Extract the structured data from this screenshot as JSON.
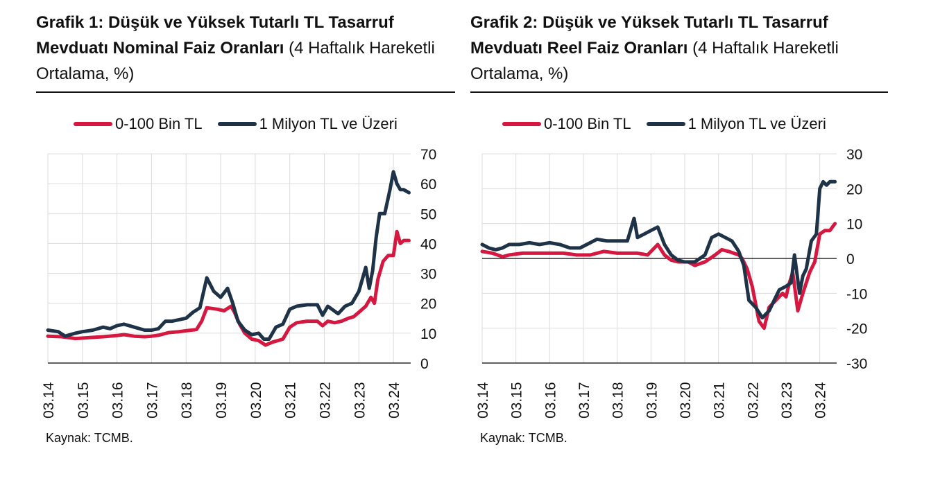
{
  "colors": {
    "series_red": "#d6173f",
    "series_navy": "#1e3347",
    "grid": "#dcdcdc",
    "axis": "#000000"
  },
  "source_text": "Kaynak: TCMB.",
  "chart_data": [
    {
      "type": "line",
      "title_bold": "Grafik 1: Düşük ve Yüksek Tutarlı TL Tasarruf Mevduatı Nominal Faiz Oranları",
      "title_rest": " (4 Haftalık Hareketli Ortalama, %)",
      "xlabel": "",
      "ylabel": "",
      "ylim": [
        0,
        70
      ],
      "yticks": [
        0,
        10,
        20,
        30,
        40,
        50,
        60,
        70
      ],
      "y_axis_side": "right",
      "grid": true,
      "legend": "top",
      "x_ticks": [
        "03.14",
        "03.15",
        "03.16",
        "03.17",
        "03.18",
        "03.19",
        "03.20",
        "03.21",
        "03.22",
        "03.23",
        "03.24"
      ],
      "x_range": [
        2014.0,
        2024.5
      ],
      "series": [
        {
          "name": "0-100 Bin TL",
          "color": "#d6173f",
          "x": [
            2014.0,
            2014.4,
            2014.8,
            2015.2,
            2015.6,
            2016.0,
            2016.2,
            2016.5,
            2016.8,
            2017.0,
            2017.2,
            2017.5,
            2017.8,
            2018.0,
            2018.3,
            2018.45,
            2018.6,
            2018.9,
            2019.1,
            2019.3,
            2019.4,
            2019.55,
            2019.7,
            2019.9,
            2020.1,
            2020.3,
            2020.5,
            2020.8,
            2021.0,
            2021.2,
            2021.5,
            2021.8,
            2021.95,
            2022.1,
            2022.3,
            2022.5,
            2022.7,
            2022.85,
            2023.0,
            2023.2,
            2023.35,
            2023.45,
            2023.55,
            2023.7,
            2023.85,
            2024.0,
            2024.1,
            2024.2,
            2024.3,
            2024.45
          ],
          "y": [
            9,
            8.8,
            8.2,
            8.5,
            8.8,
            9.2,
            9.5,
            9.0,
            8.8,
            9.0,
            9.3,
            10.2,
            10.5,
            10.8,
            11.2,
            14,
            18.5,
            18,
            17.5,
            19,
            17,
            13,
            10,
            8,
            7.5,
            6,
            7,
            8,
            12,
            13.5,
            14,
            14,
            12.5,
            14,
            13.5,
            14,
            15,
            15.5,
            17,
            19,
            22,
            20,
            28,
            34,
            36,
            36,
            44,
            40,
            41,
            41
          ]
        },
        {
          "name": "1 Milyon TL ve Üzeri",
          "color": "#1e3347",
          "x": [
            2014.0,
            2014.3,
            2014.5,
            2014.8,
            2015.0,
            2015.3,
            2015.6,
            2015.8,
            2016.0,
            2016.2,
            2016.5,
            2016.8,
            2017.0,
            2017.2,
            2017.4,
            2017.6,
            2017.8,
            2018.0,
            2018.2,
            2018.4,
            2018.6,
            2018.8,
            2019.0,
            2019.2,
            2019.35,
            2019.5,
            2019.7,
            2019.9,
            2020.1,
            2020.25,
            2020.4,
            2020.6,
            2020.8,
            2021.0,
            2021.2,
            2021.5,
            2021.8,
            2021.95,
            2022.1,
            2022.4,
            2022.6,
            2022.8,
            2023.0,
            2023.2,
            2023.3,
            2023.4,
            2023.5,
            2023.6,
            2023.75,
            2023.9,
            2024.0,
            2024.1,
            2024.2,
            2024.3,
            2024.45
          ],
          "y": [
            11,
            10.5,
            9,
            10,
            10.5,
            11,
            12,
            11.5,
            12.5,
            13,
            12,
            11,
            11,
            11.5,
            14,
            14,
            14.5,
            15,
            17,
            18.5,
            28.5,
            24,
            22,
            25,
            20,
            14,
            11,
            9.5,
            10,
            8,
            8,
            12,
            13,
            18,
            19,
            19.5,
            19.5,
            16,
            19,
            16.5,
            19,
            20,
            24,
            32,
            25,
            31,
            42,
            50,
            50,
            58,
            64,
            60,
            58,
            58,
            57
          ]
        }
      ]
    },
    {
      "type": "line",
      "title_bold": "Grafik 2: Düşük ve Yüksek Tutarlı TL Tasarruf Mevduatı Reel Faiz Oranları",
      "title_rest": " (4 Haftalık Hareketli Ortalama, %)",
      "xlabel": "",
      "ylabel": "",
      "ylim": [
        -30,
        30
      ],
      "yticks": [
        -30,
        -20,
        -10,
        0,
        10,
        20,
        30
      ],
      "y_axis_side": "right",
      "zero_line": true,
      "grid": true,
      "legend": "top",
      "x_ticks": [
        "03.14",
        "03.15",
        "03.16",
        "03.17",
        "03.18",
        "03.19",
        "03.20",
        "03.21",
        "03.22",
        "03.23",
        "03.24"
      ],
      "x_range": [
        2014.0,
        2024.5
      ],
      "series": [
        {
          "name": "0-100 Bin TL",
          "color": "#d6173f",
          "x": [
            2014.0,
            2014.3,
            2014.6,
            2014.8,
            2015.2,
            2015.6,
            2016.0,
            2016.4,
            2016.8,
            2017.2,
            2017.6,
            2018.0,
            2018.3,
            2018.6,
            2018.9,
            2019.2,
            2019.4,
            2019.6,
            2019.8,
            2020.1,
            2020.3,
            2020.6,
            2020.9,
            2021.1,
            2021.3,
            2021.6,
            2021.7,
            2021.85,
            2022.0,
            2022.2,
            2022.35,
            2022.5,
            2022.7,
            2022.9,
            2023.0,
            2023.1,
            2023.2,
            2023.35,
            2023.5,
            2023.7,
            2023.85,
            2024.0,
            2024.15,
            2024.3,
            2024.45
          ],
          "y": [
            2,
            1.5,
            0.5,
            1,
            1.5,
            1.5,
            1.5,
            1.5,
            1,
            1,
            2,
            1.5,
            1.5,
            1.5,
            1,
            4,
            1,
            -0.5,
            -1,
            -1,
            -2,
            -1,
            1,
            2.5,
            2,
            1,
            0,
            -3,
            -8,
            -18,
            -20,
            -14,
            -12,
            -10,
            -11,
            -7,
            -4,
            -15,
            -10,
            -4,
            -1,
            7,
            8,
            8,
            10
          ]
        },
        {
          "name": "1 Milyon TL ve Üzeri",
          "color": "#1e3347",
          "x": [
            2014.0,
            2014.2,
            2014.4,
            2014.6,
            2014.8,
            2015.1,
            2015.4,
            2015.7,
            2016.0,
            2016.3,
            2016.6,
            2016.9,
            2017.2,
            2017.4,
            2017.7,
            2018.0,
            2018.3,
            2018.5,
            2018.6,
            2018.8,
            2019.0,
            2019.2,
            2019.4,
            2019.6,
            2019.8,
            2020.0,
            2020.3,
            2020.6,
            2020.8,
            2021.0,
            2021.2,
            2021.4,
            2021.6,
            2021.75,
            2021.9,
            2022.1,
            2022.3,
            2022.5,
            2022.65,
            2022.8,
            2023.0,
            2023.15,
            2023.25,
            2023.4,
            2023.5,
            2023.6,
            2023.75,
            2023.9,
            2024.0,
            2024.1,
            2024.2,
            2024.3,
            2024.45
          ],
          "y": [
            4,
            3,
            2.5,
            3,
            4,
            4,
            4.5,
            4,
            4.5,
            4,
            3,
            3,
            4.5,
            5.5,
            5,
            5,
            5,
            11.5,
            6,
            7,
            8,
            9,
            4,
            1,
            -0.5,
            -1,
            -1,
            1,
            6,
            7,
            6,
            5,
            2,
            -2,
            -12,
            -14,
            -17,
            -15,
            -12,
            -9,
            -8,
            -7,
            1,
            -10,
            -5,
            -3,
            5,
            7,
            20,
            22,
            21,
            22,
            22
          ]
        }
      ]
    }
  ]
}
